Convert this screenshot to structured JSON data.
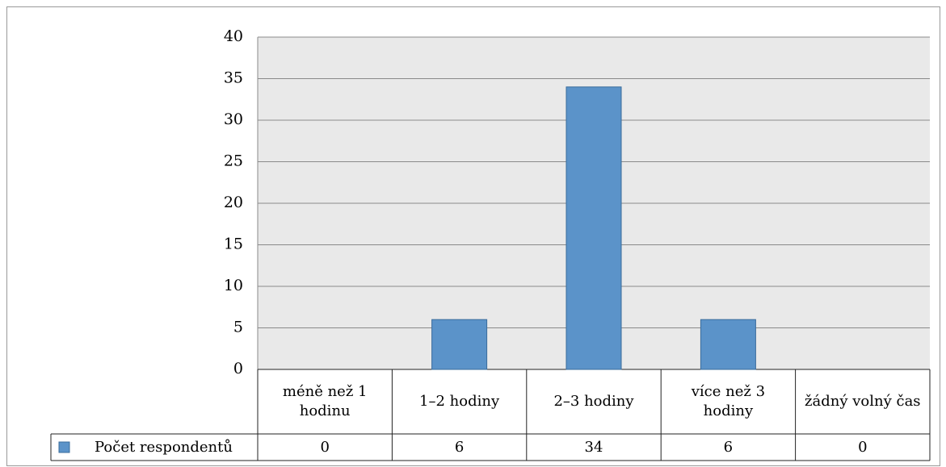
{
  "chart_data": {
    "type": "bar",
    "categories": [
      "méně než 1 hodinu",
      "1–2 hodiny",
      "2–3 hodiny",
      "více než 3 hodiny",
      "žádný volný čas"
    ],
    "series": [
      {
        "name": "Počet respondentů",
        "color": "#5b93c9",
        "values": [
          0,
          6,
          34,
          6,
          0
        ]
      }
    ],
    "ylim": [
      0,
      40
    ],
    "yticks": [
      0,
      5,
      10,
      15,
      20,
      25,
      30,
      35,
      40
    ],
    "grid": true
  }
}
